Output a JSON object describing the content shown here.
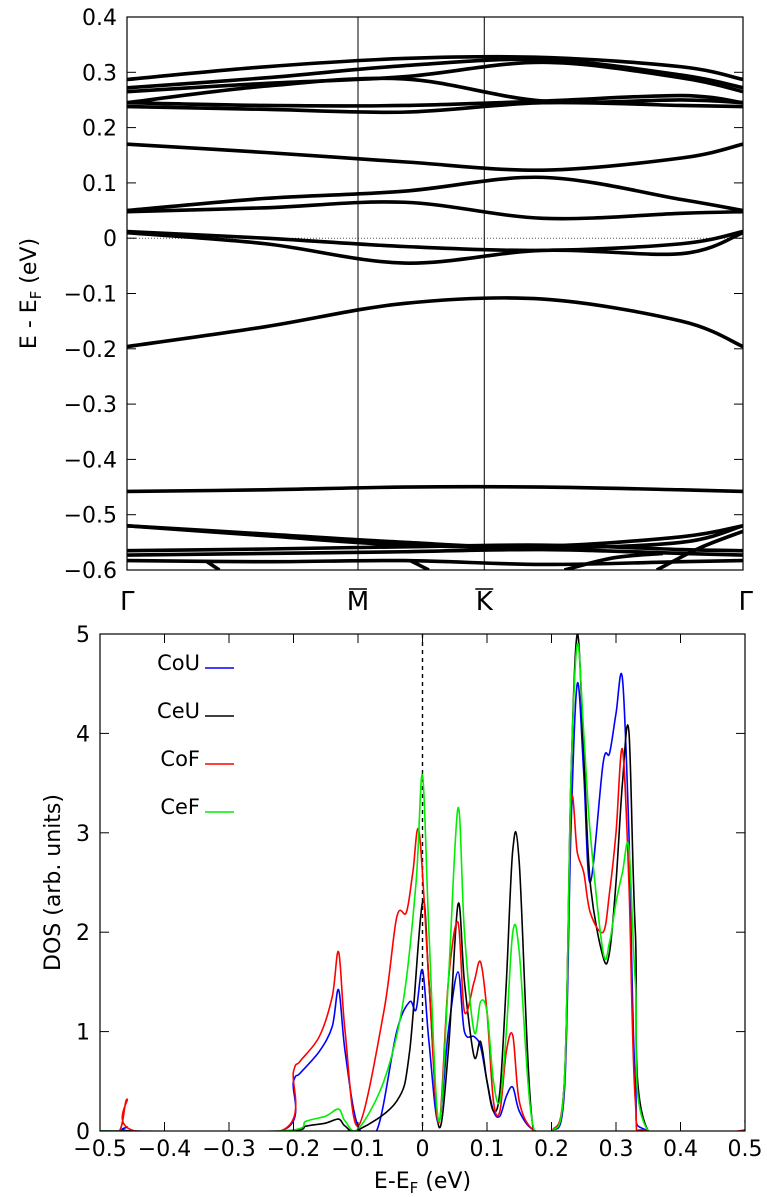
{
  "chart_data": [
    {
      "type": "line",
      "name": "band-structure",
      "ylabel": "E - E",
      "ylabel_sub": "F",
      "ylabel_unit": "(eV)",
      "ylim": [
        -0.6,
        0.4
      ],
      "yticks": [
        0.4,
        0.3,
        0.2,
        0.1,
        0,
        -0.1,
        -0.2,
        -0.3,
        -0.4,
        -0.5,
        -0.6
      ],
      "ytick_labels": [
        "0.4",
        "0.3",
        "0.2",
        "0.1",
        "0",
        "−0.1",
        "−0.2",
        "−0.3",
        "−0.4",
        "−0.5",
        "−0.6"
      ],
      "kpoints": [
        {
          "label": "Γ",
          "bar": false
        },
        {
          "label": "M",
          "bar": true
        },
        {
          "label": "K",
          "bar": true
        },
        {
          "label": "Γ",
          "bar": false
        }
      ],
      "x": [
        0.0,
        0.225,
        0.45,
        0.675,
        0.9,
        1.0
      ],
      "series": [
        {
          "values": [
            0.287,
            0.31,
            0.325,
            0.327,
            0.31,
            0.287
          ]
        },
        {
          "values": [
            0.272,
            0.29,
            0.312,
            0.323,
            0.295,
            0.272
          ]
        },
        {
          "values": [
            0.265,
            0.28,
            0.292,
            0.318,
            0.29,
            0.265
          ]
        },
        {
          "values": [
            0.245,
            0.275,
            0.288,
            0.248,
            0.25,
            0.245
          ]
        },
        {
          "values": [
            0.245,
            0.24,
            0.24,
            0.248,
            0.258,
            0.245
          ]
        },
        {
          "values": [
            0.238,
            0.233,
            0.228,
            0.245,
            0.24,
            0.238
          ]
        },
        {
          "values": [
            0.17,
            0.155,
            0.138,
            0.123,
            0.145,
            0.17
          ]
        },
        {
          "values": [
            0.05,
            0.072,
            0.085,
            0.11,
            0.07,
            0.05
          ]
        },
        {
          "values": [
            0.048,
            0.055,
            0.065,
            0.036,
            0.045,
            0.048
          ]
        },
        {
          "values": [
            0.012,
            0.0,
            -0.015,
            -0.022,
            -0.01,
            0.012
          ]
        },
        {
          "values": [
            0.01,
            -0.01,
            -0.045,
            -0.022,
            -0.028,
            0.01
          ]
        },
        {
          "values": [
            -0.196,
            -0.16,
            -0.118,
            -0.11,
            -0.15,
            -0.196
          ]
        },
        {
          "values": [
            -0.458,
            -0.455,
            -0.45,
            -0.45,
            -0.455,
            -0.458
          ]
        },
        {
          "values": [
            -0.52,
            -0.538,
            -0.555,
            -0.557,
            -0.54,
            -0.52
          ]
        },
        {
          "values": [
            -0.52,
            -0.535,
            -0.55,
            -0.56,
            -0.55,
            -0.52
          ]
        },
        {
          "values": [
            -0.565,
            -0.562,
            -0.558,
            -0.555,
            -0.563,
            -0.565
          ]
        },
        {
          "values": [
            -0.573,
            -0.57,
            -0.567,
            -0.563,
            -0.57,
            -0.573
          ]
        },
        {
          "values": [
            -0.583,
            -0.585,
            -0.583,
            -0.59,
            -0.585,
            -0.583
          ]
        }
      ]
    },
    {
      "type": "line",
      "name": "density-of-states",
      "xlabel": "E-E",
      "xlabel_sub": "F",
      "xlabel_unit": "(eV)",
      "ylabel": "DOS (arb. units)",
      "xlim": [
        -0.5,
        0.5
      ],
      "ylim": [
        0,
        5
      ],
      "xticks": [
        -0.5,
        -0.4,
        -0.3,
        -0.2,
        -0.1,
        0,
        0.1,
        0.2,
        0.3,
        0.4,
        0.5
      ],
      "xtick_labels": [
        "−0.5",
        "−0.4",
        "−0.3",
        "−0.2",
        "−0.1",
        "0",
        "0.1",
        "0.2",
        "0.3",
        "0.4",
        "0.5"
      ],
      "yticks": [
        0,
        1,
        2,
        3,
        4,
        5
      ],
      "ytick_labels": [
        "0",
        "1",
        "2",
        "3",
        "4",
        "5"
      ],
      "legend_placement": "upper-left",
      "series": [
        {
          "name": "CoU",
          "color": "#0000ff",
          "x": [
            -0.5,
            -0.47,
            -0.458,
            -0.445,
            -0.22,
            -0.2,
            -0.19,
            -0.16,
            -0.14,
            -0.13,
            -0.12,
            -0.1,
            -0.07,
            -0.04,
            -0.02,
            -0.01,
            0,
            0.01,
            0.025,
            0.04,
            0.055,
            0.065,
            0.08,
            0.09,
            0.1,
            0.11,
            0.12,
            0.13,
            0.14,
            0.15,
            0.17,
            0.2,
            0.22,
            0.23,
            0.24,
            0.25,
            0.26,
            0.28,
            0.29,
            0.3,
            0.31,
            0.32,
            0.33,
            0.35,
            0.5
          ],
          "y": [
            0,
            0,
            0.04,
            0,
            0,
            0.5,
            0.58,
            0.8,
            1.05,
            1.42,
            0.8,
            0.05,
            0.02,
            1.0,
            1.3,
            1.22,
            1.62,
            0.9,
            0.08,
            1.0,
            1.6,
            1.0,
            0.95,
            0.85,
            0.5,
            0.2,
            0.15,
            0.35,
            0.44,
            0.2,
            0.02,
            0,
            0.4,
            3.0,
            4.5,
            3.6,
            2.5,
            3.7,
            3.8,
            4.2,
            4.55,
            3.0,
            0.5,
            0,
            0
          ]
        },
        {
          "name": "CeU",
          "color": "#000000",
          "x": [
            -0.5,
            -0.22,
            -0.18,
            -0.15,
            -0.13,
            -0.12,
            -0.1,
            -0.04,
            -0.02,
            0,
            0.01,
            0.025,
            0.04,
            0.055,
            0.065,
            0.08,
            0.09,
            0.1,
            0.11,
            0.12,
            0.13,
            0.14,
            0.15,
            0.17,
            0.2,
            0.22,
            0.23,
            0.24,
            0.25,
            0.26,
            0.28,
            0.29,
            0.3,
            0.31,
            0.32,
            0.33,
            0.35,
            0.5
          ],
          "y": [
            0,
            0,
            0.05,
            0.08,
            0.12,
            0.05,
            0.01,
            0.3,
            0.8,
            2.3,
            1.5,
            0.05,
            0.8,
            2.28,
            1.5,
            0.75,
            0.9,
            0.5,
            0.2,
            0.4,
            1.5,
            2.83,
            2.7,
            0.1,
            0,
            0.5,
            3.5,
            5.0,
            3.8,
            2.5,
            1.75,
            1.8,
            2.5,
            3.5,
            4.02,
            2.0,
            0,
            0
          ]
        },
        {
          "name": "CoF",
          "color": "#ff0000",
          "x": [
            -0.5,
            -0.47,
            -0.458,
            -0.445,
            -0.22,
            -0.2,
            -0.19,
            -0.16,
            -0.14,
            -0.13,
            -0.12,
            -0.1,
            -0.06,
            -0.04,
            -0.025,
            -0.015,
            -0.005,
            0.01,
            0.025,
            0.04,
            0.055,
            0.065,
            0.08,
            0.09,
            0.1,
            0.11,
            0.12,
            0.13,
            0.14,
            0.15,
            0.17,
            0.2,
            0.22,
            0.23,
            0.24,
            0.25,
            0.26,
            0.28,
            0.29,
            0.3,
            0.31,
            0.32,
            0.33,
            0.35,
            0.49,
            0.5
          ],
          "y": [
            0,
            0,
            0.32,
            0,
            0,
            0.6,
            0.7,
            0.95,
            1.35,
            1.8,
            1.0,
            0.05,
            1.2,
            2.15,
            2.2,
            2.6,
            3.0,
            1.5,
            0.08,
            1.5,
            2.1,
            1.2,
            1.5,
            1.7,
            1.2,
            0.3,
            0.2,
            0.8,
            0.96,
            0.3,
            0.02,
            0,
            0.5,
            3.27,
            2.8,
            2.6,
            2.2,
            2.0,
            2.4,
            3.0,
            3.84,
            2.5,
            0.3,
            0,
            0,
            0.1
          ]
        },
        {
          "name": "CeF",
          "color": "#00ee00",
          "x": [
            -0.5,
            -0.22,
            -0.18,
            -0.15,
            -0.13,
            -0.12,
            -0.1,
            -0.06,
            -0.03,
            -0.01,
            0,
            0.01,
            0.025,
            0.04,
            0.055,
            0.065,
            0.08,
            0.09,
            0.1,
            0.11,
            0.12,
            0.13,
            0.14,
            0.15,
            0.17,
            0.2,
            0.22,
            0.23,
            0.24,
            0.25,
            0.26,
            0.28,
            0.29,
            0.3,
            0.31,
            0.32,
            0.33,
            0.35,
            0.5
          ],
          "y": [
            0,
            0,
            0.1,
            0.15,
            0.22,
            0.1,
            0.02,
            0.5,
            1.3,
            2.5,
            3.58,
            2.0,
            0.1,
            1.5,
            3.25,
            2.0,
            1.0,
            1.3,
            1.2,
            0.5,
            0.3,
            1.0,
            2.0,
            1.8,
            0.1,
            0,
            0.5,
            3.5,
            4.9,
            4.0,
            3.0,
            1.8,
            1.9,
            2.3,
            2.6,
            2.85,
            1.5,
            0,
            0
          ]
        }
      ]
    }
  ]
}
